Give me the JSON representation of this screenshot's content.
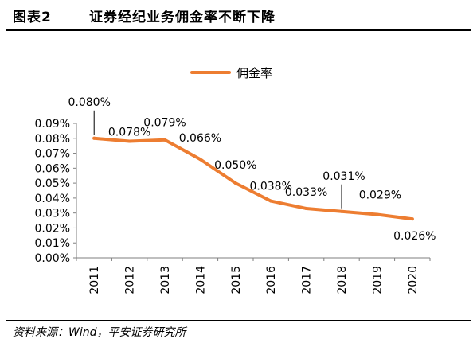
{
  "header": {
    "figure_label": "图表2",
    "title": "证券经纪业务佣金率不断下降"
  },
  "footer": {
    "source": "资料来源：Wind，平安证券研究所"
  },
  "colors": {
    "series_line": "#ED7D31",
    "axis": "#7f7f7f",
    "text": "#000000",
    "background": "#ffffff"
  },
  "chart_data": {
    "type": "line",
    "title": "",
    "xlabel": "",
    "ylabel": "",
    "categories": [
      "2011",
      "2012",
      "2013",
      "2014",
      "2015",
      "2016",
      "2017",
      "2018",
      "2019",
      "2020"
    ],
    "series": [
      {
        "name": "佣金率",
        "values": [
          0.08,
          0.078,
          0.079,
          0.066,
          0.05,
          0.038,
          0.033,
          0.031,
          0.029,
          0.026
        ],
        "labels": [
          "0.080%",
          "0.078%",
          "0.079%",
          "0.066%",
          "0.050%",
          "0.038%",
          "0.033%",
          "0.031%",
          "0.029%",
          "0.026%"
        ]
      }
    ],
    "ylim": [
      0,
      0.09
    ],
    "y_ticks": [
      "0.00%",
      "0.01%",
      "0.02%",
      "0.03%",
      "0.04%",
      "0.05%",
      "0.06%",
      "0.07%",
      "0.08%",
      "0.09%"
    ],
    "y_unit": "%",
    "grid": false,
    "legend_position": "top-center",
    "data_labels": true
  }
}
